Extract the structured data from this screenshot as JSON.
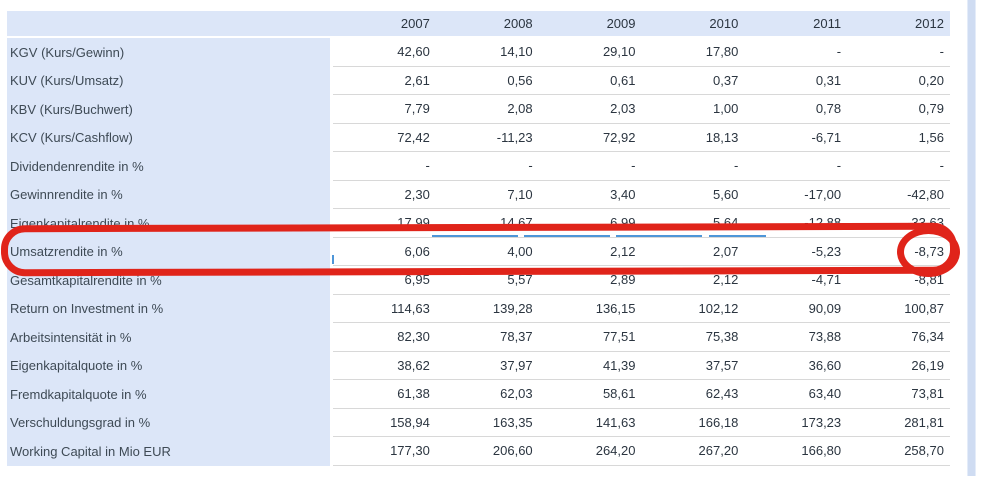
{
  "table": {
    "columns": [
      "2007",
      "2008",
      "2009",
      "2010",
      "2011",
      "2012"
    ],
    "rows": [
      {
        "label": "KGV (Kurs/Gewinn)",
        "values": [
          "42,60",
          "14,10",
          "29,10",
          "17,80",
          "-",
          "-"
        ]
      },
      {
        "label": "KUV (Kurs/Umsatz)",
        "values": [
          "2,61",
          "0,56",
          "0,61",
          "0,37",
          "0,31",
          "0,20"
        ]
      },
      {
        "label": "KBV (Kurs/Buchwert)",
        "values": [
          "7,79",
          "2,08",
          "2,03",
          "1,00",
          "0,78",
          "0,79"
        ]
      },
      {
        "label": "KCV (Kurs/Cashflow)",
        "values": [
          "72,42",
          "-11,23",
          "72,92",
          "18,13",
          "-6,71",
          "1,56"
        ]
      },
      {
        "label": "Dividendenrendite in %",
        "values": [
          "-",
          "-",
          "-",
          "-",
          "-",
          "-"
        ]
      },
      {
        "label": "Gewinnrendite in %",
        "values": [
          "2,30",
          "7,10",
          "3,40",
          "5,60",
          "-17,00",
          "-42,80"
        ]
      },
      {
        "label": "Eigenkapitalrendite in %",
        "values": [
          "17,99",
          "14,67",
          "6,99",
          "5,64",
          "-12,88",
          "-33,63"
        ]
      },
      {
        "label": "Umsatzrendite in %",
        "values": [
          "6,06",
          "4,00",
          "2,12",
          "2,07",
          "-5,23",
          "-8,73"
        ]
      },
      {
        "label": "Gesamtkapitalrendite in %",
        "values": [
          "6,95",
          "5,57",
          "2,89",
          "2,12",
          "-4,71",
          "-8,81"
        ]
      },
      {
        "label": "Return on Investment in %",
        "values": [
          "114,63",
          "139,28",
          "136,15",
          "102,12",
          "90,09",
          "100,87"
        ]
      },
      {
        "label": "Arbeitsintensität in %",
        "values": [
          "82,30",
          "78,37",
          "77,51",
          "75,38",
          "73,88",
          "76,34"
        ]
      },
      {
        "label": "Eigenkapitalquote in %",
        "values": [
          "38,62",
          "37,97",
          "41,39",
          "37,57",
          "36,60",
          "26,19"
        ]
      },
      {
        "label": "Fremdkapitalquote in %",
        "values": [
          "61,38",
          "62,03",
          "58,61",
          "62,43",
          "63,40",
          "73,81"
        ]
      },
      {
        "label": "Verschuldungsgrad in %",
        "values": [
          "158,94",
          "163,35",
          "141,63",
          "166,18",
          "173,23",
          "281,81"
        ]
      },
      {
        "label": "Working Capital in Mio EUR",
        "values": [
          "177,30",
          "206,60",
          "264,20",
          "267,20",
          "166,80",
          "258,70"
        ]
      }
    ]
  },
  "annotation": {
    "highlighted_row": "Umsatzrendite in %",
    "circled_value": "-8,73",
    "circled_column": "2012",
    "color": "#e0241a"
  },
  "colors": {
    "header_background": "#dce6f8",
    "label_background": "#dce6f8",
    "row_separator": "#d8d8d8",
    "selection_blue": "#4e96d8",
    "annotation_red": "#e0241a"
  }
}
